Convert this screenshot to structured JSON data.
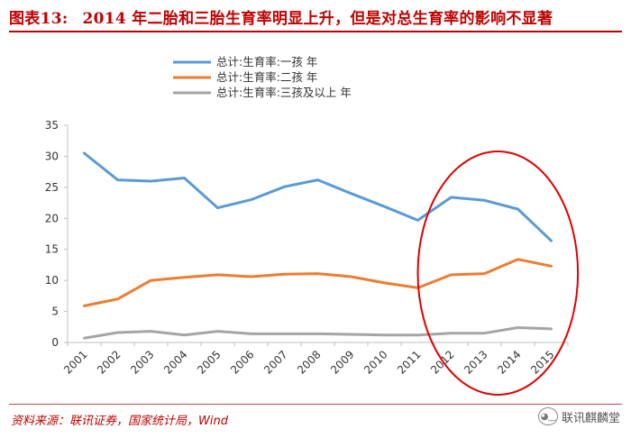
{
  "header": {
    "figure_label": "图表13:",
    "title": "2014 年二胎和三胎生育率明显上升，但是对总生育率的影响不显著"
  },
  "footer": {
    "source": "资料来源：联讯证券，国家统计局，Wind",
    "watermark": "联讯麒麟堂",
    "watermark_icon": "wechat-icon"
  },
  "chart_data": {
    "type": "line",
    "title": "",
    "xlabel": "",
    "ylabel": "",
    "categories": [
      "2001",
      "2002",
      "2003",
      "2004",
      "2005",
      "2006",
      "2007",
      "2008",
      "2009",
      "2010",
      "2011",
      "2012",
      "2013",
      "2014",
      "2015"
    ],
    "ylim": [
      0,
      35
    ],
    "yticks": [
      0,
      5,
      10,
      15,
      20,
      25,
      30,
      35
    ],
    "grid": false,
    "legend_position": "top-left",
    "series": [
      {
        "name": "总计:生育率:一孩 年",
        "color": "#5b9bd5",
        "values": [
          30.5,
          26.2,
          26.0,
          26.5,
          21.7,
          23.0,
          25.1,
          26.2,
          24.0,
          21.9,
          19.7,
          23.4,
          22.9,
          21.5,
          16.4
        ]
      },
      {
        "name": "总计:生育率:二孩 年",
        "color": "#ed7d31",
        "values": [
          5.9,
          7.0,
          10.0,
          10.5,
          10.9,
          10.6,
          11.0,
          11.1,
          10.6,
          9.6,
          8.8,
          10.9,
          11.1,
          13.4,
          12.3
        ]
      },
      {
        "name": "总计:生育率:三孩及以上 年",
        "color": "#a5a5a5",
        "values": [
          0.7,
          1.6,
          1.8,
          1.2,
          1.8,
          1.4,
          1.4,
          1.4,
          1.3,
          1.2,
          1.2,
          1.5,
          1.5,
          2.4,
          2.2
        ]
      }
    ],
    "annotation": {
      "type": "ellipse",
      "color": "#e00000",
      "covers": [
        "2012",
        "2015"
      ]
    }
  }
}
